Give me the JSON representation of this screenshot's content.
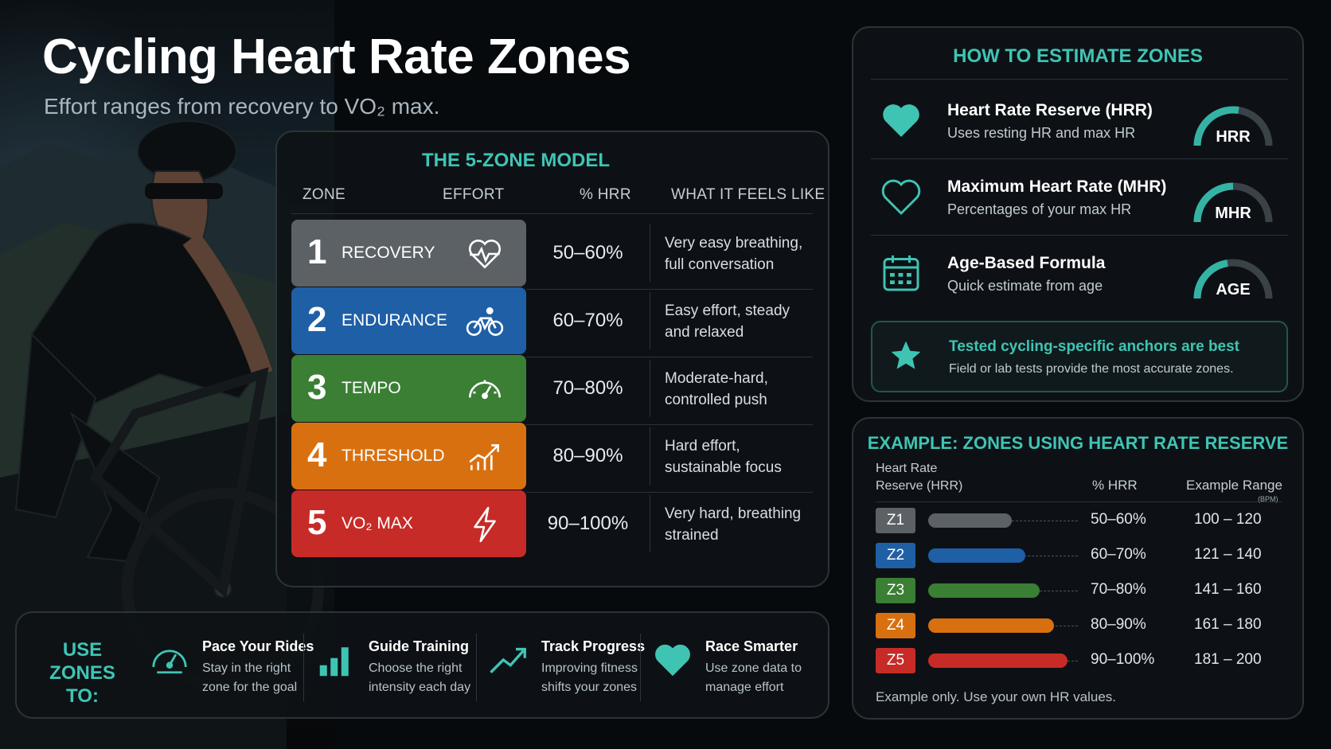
{
  "header": {
    "title": "Cycling Heart Rate Zones",
    "subtitle": "Effort ranges from recovery to VO₂ max."
  },
  "zone_model": {
    "title": "THE 5-ZONE MODEL",
    "columns": [
      "ZONE",
      "EFFORT",
      "% HRR",
      "WHAT IT FEELS LIKE"
    ],
    "zones": [
      {
        "num": "1",
        "name": "RECOVERY",
        "icon": "heart-pulse-icon",
        "pct": "50–60%",
        "feel": "Very easy breathing, full conversation",
        "color": "#5c6166"
      },
      {
        "num": "2",
        "name": "ENDURANCE",
        "icon": "bicycle-icon",
        "pct": "60–70%",
        "feel": "Easy effort, steady and relaxed",
        "color": "#1f5fa6"
      },
      {
        "num": "3",
        "name": "TEMPO",
        "icon": "speedometer-icon",
        "pct": "70–80%",
        "feel": "Moderate-hard, controlled push",
        "color": "#3a7f34"
      },
      {
        "num": "4",
        "name": "THRESHOLD",
        "icon": "rising-chart-icon",
        "pct": "80–90%",
        "feel": "Hard effort, sustainable focus",
        "color": "#d9700f"
      },
      {
        "num": "5",
        "name": "VO₂ MAX",
        "icon": "lightning-icon",
        "pct": "90–100%",
        "feel": "Very hard, breathing strained",
        "color": "#c72b27"
      }
    ]
  },
  "use_zones": {
    "title": "USE ZONES TO:",
    "items": [
      {
        "icon": "gauge-icon",
        "head": "Pace Your Rides",
        "desc": [
          "Stay in the right",
          "zone for the goal"
        ]
      },
      {
        "icon": "bar-chart-icon",
        "head": "Guide Training",
        "desc": [
          "Choose the right",
          "intensity each day"
        ]
      },
      {
        "icon": "trend-up-icon",
        "head": "Track Progress",
        "desc": [
          "Improving fitness",
          "shifts your zones"
        ]
      },
      {
        "icon": "heart-icon",
        "head": "Race Smarter",
        "desc": [
          "Use zone data to",
          "manage effort"
        ]
      }
    ]
  },
  "estimate": {
    "title": "HOW TO ESTIMATE ZONES",
    "methods": [
      {
        "icon": "filled-heart-icon",
        "head": "Heart Rate Reserve (HRR)",
        "desc": "Uses resting HR and max HR",
        "gauge": "HRR",
        "level": 0.55
      },
      {
        "icon": "outline-heart-icon",
        "head": "Maximum Heart Rate (MHR)",
        "desc": "Percentages of your max HR",
        "gauge": "MHR",
        "level": 0.5
      },
      {
        "icon": "calendar-icon",
        "head": "Age-Based Formula",
        "desc": "Quick estimate from age",
        "gauge": "AGE",
        "level": 0.45
      }
    ],
    "tip": {
      "icon": "star-icon",
      "head": "Tested cycling-specific anchors are best",
      "desc": "Field or lab tests provide the most accurate zones."
    }
  },
  "example": {
    "title": "EXAMPLE: ZONES USING HEART RATE RESERVE",
    "col1": [
      "Heart Rate",
      "Reserve (HRR)"
    ],
    "col2": "% HRR",
    "col3": "Example Range",
    "col3_unit": "(BPM)",
    "rows": [
      {
        "zone": "Z1",
        "pct": "50–60%",
        "range": "100 – 120",
        "level": 0.6,
        "color": "#5c6166"
      },
      {
        "zone": "Z2",
        "pct": "60–70%",
        "range": "121 – 140",
        "level": 0.7,
        "color": "#1f5fa6"
      },
      {
        "zone": "Z3",
        "pct": "70–80%",
        "range": "141 – 160",
        "level": 0.8,
        "color": "#3a7f34"
      },
      {
        "zone": "Z4",
        "pct": "80–90%",
        "range": "161 – 180",
        "level": 0.9,
        "color": "#d9700f"
      },
      {
        "zone": "Z5",
        "pct": "90–100%",
        "range": "181 – 200",
        "level": 1.0,
        "color": "#c72b27"
      }
    ],
    "note": "Example only. Use your own HR values."
  },
  "colors": {
    "accent": "#3fc4b4"
  }
}
